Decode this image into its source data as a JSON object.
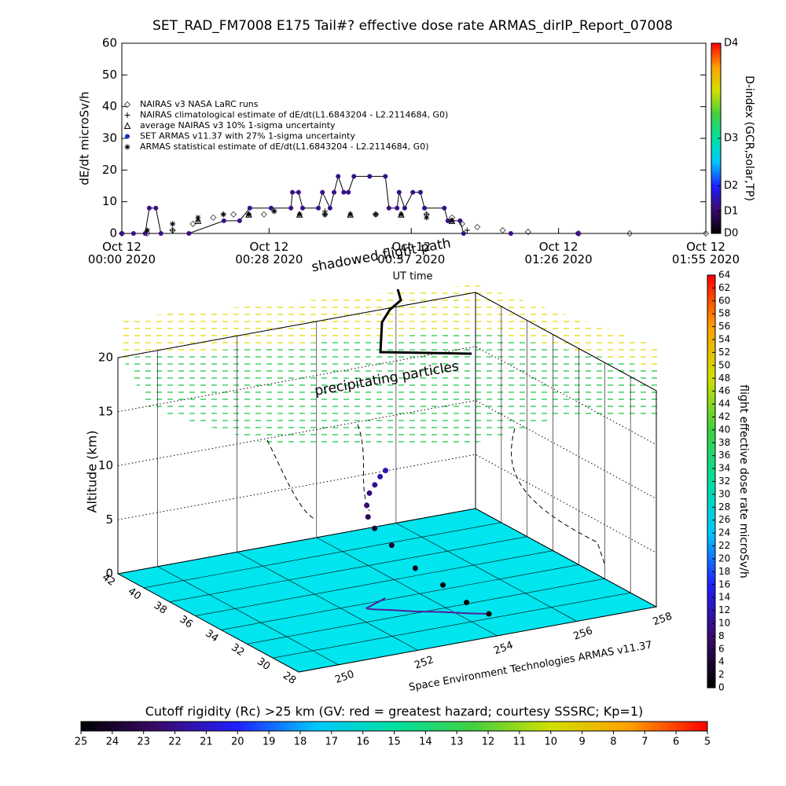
{
  "chart_data": [
    {
      "type": "line",
      "title": "SET_RAD_FM7008  E175 Tail#? effective dose rate ARMAS_dirIP_Report_07008",
      "ylabel": "dE/dt microSv/h",
      "xlim": [
        0,
        115
      ],
      "ylim": [
        0,
        60
      ],
      "yticks": [
        0,
        10,
        20,
        30,
        40,
        50,
        60
      ],
      "xticks": [
        {
          "value": 0,
          "label": "Oct 12\n00:00 2020"
        },
        {
          "value": 29,
          "label": "Oct 12\n00:28 2020"
        },
        {
          "value": 57,
          "label": "Oct 12\n00:57 2020"
        },
        {
          "value": 86,
          "label": "Oct 12\n01:26 2020"
        },
        {
          "value": 115,
          "label": "Oct 12\n01:55 2020"
        }
      ],
      "series": [
        {
          "name": "NAIRAS v3 NASA LaRC runs",
          "marker": "diamond",
          "color": "#555555",
          "x": [
            0,
            5,
            10,
            14,
            18,
            22,
            28,
            40,
            50,
            60,
            65,
            67,
            70,
            75,
            80,
            90,
            100,
            115
          ],
          "values": [
            0,
            0,
            1,
            3,
            5,
            6,
            6,
            6,
            6,
            6,
            5,
            3,
            2,
            1,
            0.5,
            0,
            0,
            0
          ]
        },
        {
          "name": "NAIRAS climatological estimate of dE/dt(L1.6843204 - L2.2114684, G0)",
          "marker": "plus",
          "color": "#000000",
          "x": [
            10,
            15,
            20,
            25,
            30,
            40,
            50,
            60,
            65,
            68
          ],
          "values": [
            1,
            4,
            6,
            6,
            7,
            7,
            6,
            6,
            4,
            1
          ]
        },
        {
          "name": "average NAIRAS v3 10% 1-sigma uncertainty",
          "marker": "triangle",
          "color": "#000000",
          "x": [
            15,
            25,
            35,
            45,
            55,
            65
          ],
          "values": [
            4,
            6,
            6,
            6,
            6,
            4
          ]
        },
        {
          "name": "SET ARMAS v11.37 with 27% 1-sigma uncertainty",
          "marker": "dot",
          "color": "#3a0f8a",
          "line": true,
          "x": [
            0,
            2.3,
            4.6,
            5.4,
            6.7,
            7.7,
            13.2,
            20.1,
            23.2,
            25.2,
            29.4,
            33.3,
            33.6,
            34.8,
            35.6,
            38.7,
            39.5,
            41.0,
            41.8,
            42.6,
            43.7,
            44.6,
            45.7,
            48.8,
            51.9,
            52.6,
            54.2,
            54.6,
            55.7,
            57.3,
            58.8,
            59.6,
            63.5,
            64.2,
            66.6,
            67.3,
            76.6,
            89.8
          ],
          "values": [
            0,
            0,
            0,
            8,
            8,
            0,
            0,
            4,
            4,
            8,
            8,
            8,
            13,
            13,
            8,
            8,
            13,
            8,
            13,
            18,
            13,
            13,
            18,
            18,
            18,
            8,
            8,
            13,
            8,
            13,
            13,
            8,
            8,
            4,
            4,
            0,
            0,
            0
          ]
        },
        {
          "name": "ARMAS statistical estimate of dE/dt(L1.6843204 - L2.2114684, G0)",
          "marker": "asterisk",
          "color": "#000000",
          "x": [
            5,
            10,
            15,
            20,
            25,
            30,
            35,
            40,
            45,
            50,
            55,
            60,
            65
          ],
          "values": [
            1,
            3,
            5,
            6,
            6,
            7,
            6,
            6,
            6,
            6,
            6,
            5,
            4
          ]
        }
      ]
    },
    {
      "type": "colorbar",
      "orientation": "vertical",
      "label": "D-index (GCR,solar,TP)",
      "lim": [
        0,
        60
      ],
      "ticks": [
        {
          "value": 0,
          "label": "D0"
        },
        {
          "value": 7,
          "label": "D1"
        },
        {
          "value": 15,
          "label": "D2"
        },
        {
          "value": 30,
          "label": "D3"
        },
        {
          "value": 60,
          "label": "D4"
        }
      ],
      "colors": [
        "#000000",
        "#3b0a6e",
        "#2020ff",
        "#00c8ff",
        "#00e0a0",
        "#40d040",
        "#d0e000",
        "#ffa000",
        "#ff0000"
      ]
    },
    {
      "type": "scene3d",
      "zlabel": "Altitude (km)",
      "zlim": [
        0,
        20
      ],
      "zticks": [
        0,
        5,
        10,
        15,
        20
      ],
      "latlim": [
        28,
        42
      ],
      "latticks": [
        42,
        40,
        38,
        36,
        34,
        32,
        30,
        28
      ],
      "lonlim": [
        249,
        258
      ],
      "lonticks": [
        250,
        252,
        254,
        256,
        258
      ],
      "annotations": [
        "shadowed flight path",
        "precipitating particles",
        "UT time"
      ],
      "credit": "Space Environment Technologies ARMAS v11.37",
      "ground_color": "#00e5ee",
      "flight_path": {
        "lat": [
          30.5,
          31,
          31.6,
          32.2,
          32.8,
          33.2,
          33.4,
          33.5,
          33.6,
          33.8,
          34.0,
          34.2
        ],
        "lon": [
          254.6,
          254.2,
          253.8,
          253.3,
          252.9,
          252.6,
          252.5,
          252.5,
          252.6,
          252.8,
          253.0,
          253.2
        ],
        "alt": [
          0,
          1,
          2.5,
          4,
          6,
          7.5,
          8.5,
          9.5,
          10.5,
          11,
          11.5,
          11.8
        ],
        "dose": [
          0,
          0,
          1,
          2,
          3,
          4,
          6,
          8,
          9,
          10,
          11,
          12
        ]
      }
    },
    {
      "type": "colorbar",
      "orientation": "vertical",
      "label": "flight effective dose rate microSv/h",
      "lim": [
        0,
        64
      ],
      "ticks": [
        0,
        2,
        4,
        6,
        8,
        10,
        12,
        14,
        16,
        18,
        20,
        22,
        24,
        26,
        28,
        30,
        32,
        34,
        36,
        38,
        40,
        42,
        44,
        46,
        48,
        50,
        52,
        54,
        56,
        58,
        60,
        62,
        64
      ],
      "colors": [
        "#000000",
        "#3b0a6e",
        "#2020ff",
        "#00c8ff",
        "#00e0a0",
        "#40d040",
        "#d0e000",
        "#ffa000",
        "#ff0000"
      ]
    },
    {
      "type": "colorbar",
      "orientation": "horizontal",
      "label": "Cutoff rigidity (Rc) >25 km (GV: red = greatest hazard; courtesy SSSRC; Kp=1)",
      "lim": [
        25,
        5
      ],
      "ticks": [
        25,
        24,
        23,
        22,
        21,
        20,
        19,
        18,
        17,
        16,
        15,
        14,
        13,
        12,
        11,
        10,
        9,
        8,
        7,
        6,
        5
      ],
      "colors": [
        "#000000",
        "#3b0a6e",
        "#2020ff",
        "#00c8ff",
        "#00e0a0",
        "#40d040",
        "#d0e000",
        "#ffa000",
        "#ff0000"
      ]
    }
  ]
}
